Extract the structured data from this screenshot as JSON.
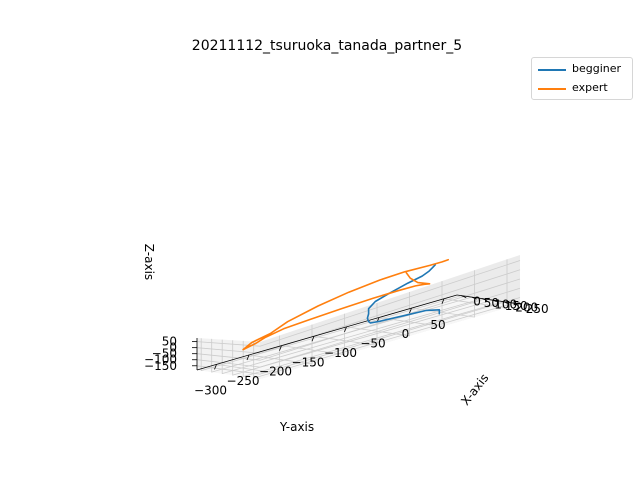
{
  "chart_data": {
    "type": "line",
    "projection": "3d",
    "title": "20211112_tsuruoka_tanada_partner_5",
    "xlabel": "X-axis",
    "ylabel": "Y-axis",
    "zlabel": "Z-axis",
    "x_ticks": [
      "0",
      "50",
      "100",
      "150",
      "200",
      "250"
    ],
    "y_ticks": [
      "−300",
      "−250",
      "−200",
      "−150",
      "−100",
      "−50",
      "0",
      "50"
    ],
    "z_ticks": [
      "50",
      "0",
      "−50",
      "−100",
      "−150"
    ],
    "grid": true,
    "legend_position": "upper-right-outside",
    "series": [
      {
        "name": "begginer",
        "color": "#1f77b4",
        "points": [
          [
            0,
            30,
            50
          ],
          [
            3,
            25,
            40
          ],
          [
            8,
            18,
            28
          ],
          [
            15,
            5,
            15
          ],
          [
            25,
            -20,
            5
          ],
          [
            40,
            -55,
            -15
          ],
          [
            55,
            -80,
            -30
          ],
          [
            70,
            -95,
            -55
          ],
          [
            85,
            -100,
            -80
          ],
          [
            95,
            -105,
            -100
          ],
          [
            110,
            -108,
            -115
          ],
          [
            125,
            -110,
            -120
          ],
          [
            140,
            -100,
            -118
          ],
          [
            160,
            -70,
            -117
          ],
          [
            175,
            -40,
            -118
          ],
          [
            190,
            -25,
            -130
          ],
          [
            205,
            -30,
            -145
          ]
        ]
      },
      {
        "name": "expert",
        "color": "#ff7f0e",
        "points": [
          [
            0,
            50,
            55
          ],
          [
            2,
            40,
            55
          ],
          [
            5,
            20,
            60
          ],
          [
            10,
            -20,
            75
          ],
          [
            15,
            -60,
            78
          ],
          [
            22,
            -110,
            70
          ],
          [
            30,
            -160,
            50
          ],
          [
            40,
            -210,
            15
          ],
          [
            50,
            -240,
            -25
          ],
          [
            55,
            -270,
            -45
          ],
          [
            60,
            -285,
            -75
          ],
          [
            58,
            -265,
            -60
          ],
          [
            55,
            -250,
            -40
          ],
          [
            52,
            -220,
            -20
          ],
          [
            50,
            -180,
            -15
          ],
          [
            48,
            -130,
            -10
          ],
          [
            45,
            -80,
            -10
          ],
          [
            40,
            -40,
            -15
          ],
          [
            30,
            -10,
            -25
          ],
          [
            25,
            5,
            -35
          ],
          [
            20,
            15,
            -45
          ],
          [
            10,
            0,
            -20
          ],
          [
            5,
            -10,
            20
          ],
          [
            2,
            -15,
            60
          ]
        ]
      }
    ]
  }
}
